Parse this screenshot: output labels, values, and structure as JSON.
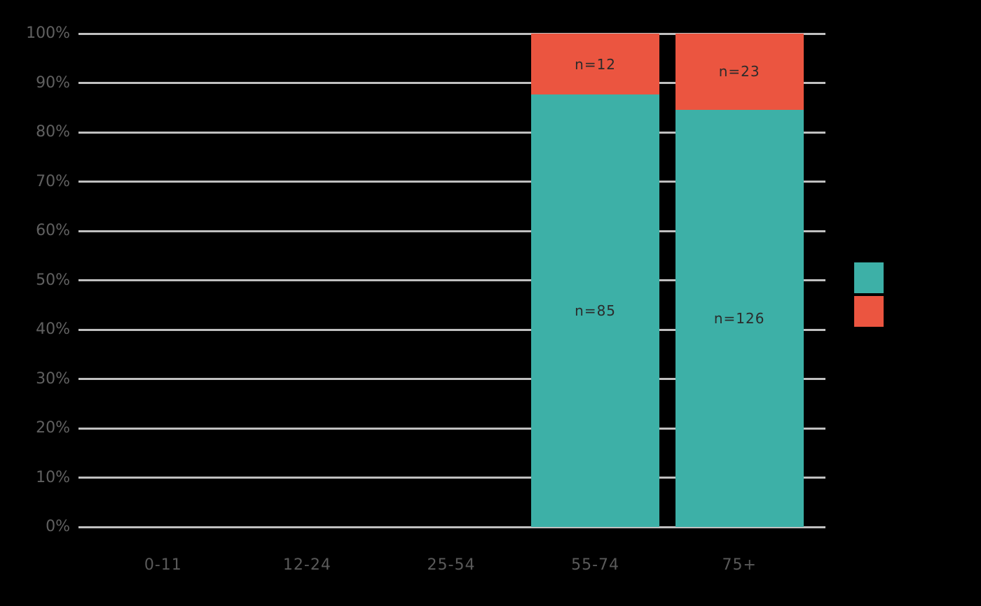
{
  "canvas": {
    "background": "#000000"
  },
  "chart_data": {
    "type": "bar",
    "subtype": "stacked-100-percent",
    "title": "",
    "xlabel": "",
    "ylabel": "",
    "categories": [
      "0-11",
      "12-24",
      "25-54",
      "55-74",
      "75+"
    ],
    "series": [
      {
        "name": "bottom-segment",
        "color": "#3db0a7",
        "counts": [
          null,
          null,
          null,
          85,
          126
        ],
        "labels": [
          "",
          "",
          "",
          "n=85",
          "n=126"
        ],
        "percents": [
          null,
          null,
          null,
          87.6,
          84.6
        ]
      },
      {
        "name": "top-segment",
        "color": "#eb5540",
        "counts": [
          null,
          null,
          null,
          12,
          23
        ],
        "labels": [
          "",
          "",
          "",
          "n=12",
          "n=23"
        ],
        "percents": [
          null,
          null,
          null,
          12.4,
          15.4
        ]
      }
    ],
    "yticks": [
      "0%",
      "10%",
      "20%",
      "30%",
      "40%",
      "50%",
      "60%",
      "70%",
      "80%",
      "90%",
      "100%"
    ],
    "ytick_values": [
      0,
      10,
      20,
      30,
      40,
      50,
      60,
      70,
      80,
      90,
      100
    ],
    "ylim": [
      0,
      100
    ],
    "grid": "on",
    "legend": {
      "position": "right",
      "items": [
        {
          "swatch_color": "#3db0a7",
          "label": ""
        },
        {
          "swatch_color": "#eb5540",
          "label": ""
        }
      ]
    },
    "colors": {
      "gridline": "#c0c0c0",
      "y_tick_text": "#606060",
      "x_tick_text": "#5a5a5a",
      "bar_label_text": "#2b2b2b",
      "background": "#000000"
    }
  }
}
